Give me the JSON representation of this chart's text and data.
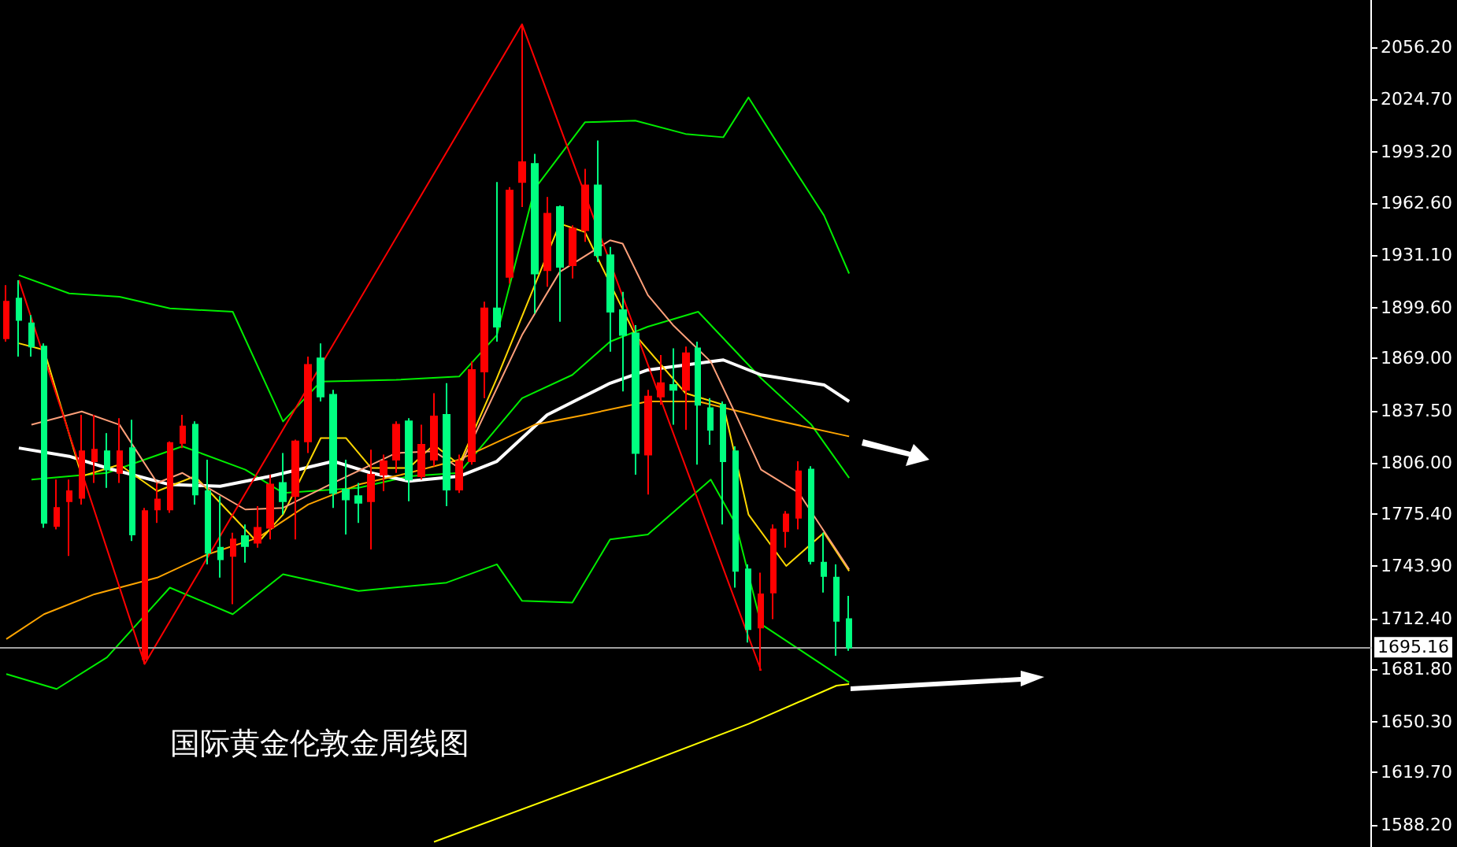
{
  "chart_data": {
    "type": "candlestick",
    "title": "国际黄金伦敦金周线图",
    "categories": [
      null,
      null,
      null,
      null,
      null,
      null,
      null,
      null,
      null,
      null,
      null,
      null,
      null,
      null,
      null,
      null,
      null,
      null,
      null,
      null,
      null,
      null,
      null,
      null,
      null,
      null,
      null,
      null,
      null,
      null,
      null,
      null,
      null,
      null,
      null,
      null,
      null,
      null,
      null,
      null,
      null,
      null,
      null,
      null,
      null,
      null,
      null,
      null,
      null,
      null,
      null,
      null,
      null,
      null,
      null,
      null,
      null,
      null,
      null,
      null,
      null,
      null,
      null,
      null,
      null,
      null,
      null,
      null,
      null,
      null,
      null,
      null,
      null,
      null,
      null,
      null,
      null,
      null,
      null,
      null,
      null,
      null,
      null,
      null,
      null,
      null,
      null,
      null,
      null,
      null,
      null,
      null,
      null,
      null,
      null,
      null,
      null,
      null,
      null,
      null,
      null,
      null,
      null,
      null,
      null,
      null,
      null,
      null,
      null
    ],
    "ohlc": [
      [
        1881,
        1913,
        1879,
        1903
      ],
      [
        1905,
        1916,
        1870,
        1892
      ],
      [
        1890,
        1895,
        1870,
        1876
      ],
      [
        1876,
        1878,
        1767,
        1770
      ],
      [
        1768,
        1796,
        1766,
        1779
      ],
      [
        1783,
        1796,
        1750,
        1789
      ],
      [
        1785,
        1835,
        1781,
        1813
      ],
      [
        1807,
        1835,
        1794,
        1814
      ],
      [
        1813,
        1824,
        1791,
        1802
      ],
      [
        1800,
        1833,
        1794,
        1813
      ],
      [
        1815,
        1832,
        1759,
        1763
      ],
      [
        1688,
        1779,
        1685,
        1777
      ],
      [
        1778,
        1794,
        1770,
        1784
      ],
      [
        1778,
        1819,
        1776,
        1818
      ],
      [
        1818,
        1835,
        1815,
        1828
      ],
      [
        1829,
        1831,
        1781,
        1787
      ],
      [
        1789,
        1808,
        1745,
        1752
      ],
      [
        1755,
        1786,
        1737,
        1748
      ],
      [
        1750,
        1764,
        1721,
        1760
      ],
      [
        1762,
        1769,
        1746,
        1756
      ],
      [
        1758,
        1780,
        1755,
        1767
      ],
      [
        1767,
        1799,
        1760,
        1793
      ],
      [
        1794,
        1812,
        1775,
        1783
      ],
      [
        1786,
        1820,
        1760,
        1819
      ],
      [
        1819,
        1870,
        1812,
        1865
      ],
      [
        1869,
        1878,
        1843,
        1846
      ],
      [
        1847,
        1850,
        1779,
        1788
      ],
      [
        1790,
        1808,
        1763,
        1784
      ],
      [
        1786,
        1794,
        1770,
        1782
      ],
      [
        1783,
        1814,
        1754,
        1799
      ],
      [
        1799,
        1811,
        1789,
        1807
      ],
      [
        1808,
        1831,
        1800,
        1829
      ],
      [
        1831,
        1833,
        1783,
        1796
      ],
      [
        1798,
        1829,
        1796,
        1817
      ],
      [
        1808,
        1848,
        1804,
        1834
      ],
      [
        1835,
        1854,
        1780,
        1790
      ],
      [
        1790,
        1811,
        1788,
        1807
      ],
      [
        1807,
        1867,
        1805,
        1862
      ],
      [
        1861,
        1903,
        1845,
        1899
      ],
      [
        1899,
        1975,
        1879,
        1888
      ],
      [
        1918,
        1972,
        1914,
        1970
      ],
      [
        1975,
        2070,
        1960,
        1987
      ],
      [
        1986,
        1992,
        1896,
        1920
      ],
      [
        1922,
        1966,
        1912,
        1956
      ],
      [
        1960,
        1961,
        1891,
        1924
      ],
      [
        1925,
        1949,
        1917,
        1947
      ],
      [
        1946,
        1983,
        1939,
        1973
      ],
      [
        1973,
        2000,
        1927,
        1931
      ],
      [
        1931,
        1936,
        1873,
        1897
      ],
      [
        1898,
        1909,
        1849,
        1883
      ],
      [
        1884,
        1889,
        1799,
        1812
      ],
      [
        1811,
        1850,
        1787,
        1846
      ],
      [
        1846,
        1871,
        1841,
        1854
      ],
      [
        1853,
        1875,
        1829,
        1850
      ],
      [
        1850,
        1876,
        1826,
        1872
      ],
      [
        1875,
        1879,
        1805,
        1841
      ],
      [
        1839,
        1845,
        1817,
        1826
      ],
      [
        1841,
        1843,
        1769,
        1807
      ],
      [
        1813,
        1816,
        1731,
        1741
      ],
      [
        1742,
        1745,
        1698,
        1706
      ],
      [
        1707,
        1740,
        1681,
        1727
      ],
      [
        1728,
        1769,
        1712,
        1766
      ],
      [
        1765,
        1777,
        1755,
        1775
      ],
      [
        1773,
        1807,
        1766,
        1801
      ],
      [
        1802,
        1804,
        1745,
        1747
      ],
      [
        1746,
        1764,
        1728,
        1738
      ],
      [
        1737,
        1745,
        1690,
        1711
      ],
      [
        1712,
        1726,
        1693,
        1695
      ],
      null,
      null,
      null,
      null,
      null,
      null,
      null,
      null,
      null,
      null,
      null,
      null,
      null,
      null,
      null,
      null,
      null,
      null,
      null,
      null,
      null,
      null,
      null,
      null,
      null,
      null,
      null,
      null,
      null,
      null,
      null,
      null,
      null,
      null,
      null,
      null,
      null,
      null,
      null,
      null,
      null
    ],
    "colors": [
      "#ff0000",
      "#00ff80",
      "#00ff80",
      "#00ff80",
      "#ff0000",
      "#ff0000",
      "#ff0000",
      "#ff0000",
      "#00ff80",
      "#ff0000",
      "#00ff80",
      "#ff0000",
      "#ff0000",
      "#ff0000",
      "#ff0000",
      "#00ff80",
      "#00ff80",
      "#00ff80",
      "#ff0000",
      "#00ff80",
      "#ff0000",
      "#ff0000",
      "#00ff80",
      "#ff0000",
      "#ff0000",
      "#00ff80",
      "#00ff80",
      "#00ff80",
      "#00ff80",
      "#ff0000",
      "#ff0000",
      "#ff0000",
      "#00ff80",
      "#ff0000",
      "#ff0000",
      "#00ff80",
      "#ff0000",
      "#ff0000",
      "#ff0000",
      "#00ff80",
      "#ff0000",
      "#ff0000",
      "#00ff80",
      "#ff0000",
      "#00ff80",
      "#ff0000",
      "#ff0000",
      "#00ff80",
      "#00ff80",
      "#00ff80",
      "#00ff80",
      "#ff0000",
      "#ff0000",
      "#00ff80",
      "#ff0000",
      "#00ff80",
      "#00ff80",
      "#00ff80",
      "#00ff80",
      "#00ff80",
      "#ff0000",
      "#ff0000",
      "#ff0000",
      "#ff0000",
      "#00ff80",
      "#00ff80",
      "#00ff80",
      "#00ff80",
      null,
      null,
      null,
      null,
      null,
      null,
      null,
      null,
      null,
      null,
      null,
      null,
      null,
      null,
      null,
      null,
      null,
      null,
      null,
      null,
      null,
      null,
      null,
      null,
      null,
      null,
      null,
      null,
      null,
      null,
      null,
      null,
      null,
      null,
      null,
      null,
      null,
      null,
      null,
      null,
      null
    ],
    "series": [
      {
        "type": "line",
        "color": "#00ee00",
        "values": [
          null,
          1919,
          null,
          null,
          null,
          1908,
          null,
          null,
          null,
          1906,
          null,
          null,
          null,
          1899,
          null,
          null,
          null,
          null,
          1897,
          null,
          null,
          null,
          1831,
          null,
          null,
          1855,
          null,
          null,
          null,
          null,
          null,
          1856,
          null,
          null,
          null,
          null,
          1858,
          null,
          null,
          1883,
          null,
          null,
          1971,
          null,
          null,
          null,
          2011,
          null,
          null,
          null,
          2012,
          null,
          null,
          null,
          2004,
          null,
          null,
          2002,
          null,
          2026,
          null,
          2002,
          null,
          null,
          null,
          1955,
          null,
          1920,
          null,
          null,
          null,
          null,
          null,
          null,
          null,
          null,
          null,
          null,
          null,
          null,
          null,
          null,
          null,
          null,
          null,
          null,
          null,
          null,
          null,
          null,
          null,
          null,
          null,
          null,
          null,
          null,
          null,
          null,
          null,
          null,
          null,
          null,
          null,
          null,
          null,
          null,
          null,
          null,
          null
        ]
      },
      {
        "type": "line",
        "color": "#00ee00",
        "values": [
          null,
          null,
          1796,
          null,
          null,
          null,
          null,
          null,
          1800,
          null,
          null,
          null,
          null,
          null,
          1816,
          null,
          null,
          null,
          null,
          1802,
          null,
          null,
          1788,
          null,
          null,
          null,
          null,
          null,
          1791,
          null,
          null,
          null,
          1798,
          null,
          null,
          null,
          1800,
          null,
          null,
          null,
          null,
          1845,
          null,
          null,
          null,
          1859,
          null,
          null,
          1879,
          null,
          null,
          1888,
          null,
          null,
          null,
          1897,
          null,
          null,
          null,
          null,
          1857,
          null,
          null,
          null,
          1829,
          null,
          null,
          1797,
          null,
          null,
          null,
          null,
          null,
          null,
          null,
          null,
          null,
          null,
          null,
          null,
          null,
          null,
          null,
          null,
          null,
          null,
          null,
          null,
          null,
          null,
          null,
          null,
          null,
          null,
          null,
          null,
          null,
          null,
          null,
          null,
          null,
          null,
          null,
          null,
          null,
          null,
          null,
          null,
          null
        ]
      },
      {
        "type": "line",
        "color": "#00ee00",
        "values": [
          1679,
          null,
          null,
          null,
          1670,
          null,
          null,
          null,
          1689,
          null,
          null,
          null,
          null,
          1731,
          null,
          null,
          null,
          null,
          1715,
          null,
          null,
          null,
          1739,
          null,
          null,
          null,
          null,
          null,
          1729,
          null,
          null,
          null,
          null,
          null,
          null,
          1734,
          null,
          null,
          null,
          1745,
          null,
          1723,
          null,
          null,
          null,
          1722,
          null,
          null,
          1760,
          null,
          null,
          1763,
          null,
          null,
          null,
          null,
          1796,
          null,
          1769,
          null,
          1709,
          null,
          null,
          1694,
          null,
          null,
          null,
          1674,
          null,
          null,
          null,
          null,
          null,
          null,
          null,
          null,
          null,
          null,
          null,
          null,
          null,
          null,
          null,
          null,
          null,
          null,
          null,
          null,
          null,
          null,
          null,
          null,
          null,
          null,
          null,
          null,
          null,
          null,
          null,
          null,
          null,
          null,
          null,
          null,
          null,
          null,
          null,
          null,
          null
        ]
      },
      {
        "type": "line",
        "color": "#ffffff",
        "values": [
          null,
          1815,
          null,
          null,
          null,
          1810,
          null,
          null,
          1803,
          null,
          null,
          null,
          null,
          1793,
          null,
          null,
          null,
          1792,
          null,
          null,
          null,
          1798,
          null,
          null,
          null,
          null,
          1807,
          null,
          null,
          1800,
          null,
          null,
          1795,
          null,
          null,
          null,
          1798,
          null,
          null,
          1807,
          null,
          null,
          null,
          1835,
          null,
          null,
          null,
          null,
          1854,
          null,
          null,
          1862,
          null,
          null,
          null,
          null,
          null,
          1868,
          null,
          null,
          1859,
          null,
          null,
          null,
          null,
          1853,
          null,
          1843,
          null,
          null,
          null,
          null,
          null,
          null,
          null,
          null,
          null,
          null,
          null,
          null,
          null,
          null,
          null,
          null,
          null,
          null,
          null,
          null,
          null,
          null,
          null,
          null,
          null,
          null,
          null,
          null,
          null,
          null,
          null,
          null,
          null,
          null,
          null,
          null,
          null,
          null,
          null,
          null,
          null
        ]
      },
      {
        "type": "line",
        "color": "#ffa500",
        "values": [
          1700,
          null,
          null,
          1715,
          null,
          null,
          null,
          1727,
          null,
          null,
          null,
          null,
          1737,
          null,
          null,
          null,
          1751,
          null,
          null,
          null,
          1761,
          null,
          null,
          null,
          1781,
          null,
          null,
          null,
          1793,
          null,
          null,
          null,
          1800,
          null,
          null,
          null,
          1808,
          null,
          null,
          null,
          null,
          null,
          1829,
          null,
          null,
          null,
          1835,
          null,
          null,
          null,
          null,
          1843,
          null,
          null,
          null,
          1843,
          null,
          null,
          null,
          null,
          null,
          1832,
          null,
          null,
          null,
          null,
          null,
          1822,
          null,
          null,
          null,
          null,
          null,
          null,
          null,
          null,
          null,
          null,
          null,
          null,
          null,
          null,
          null,
          null,
          null,
          null,
          null,
          null,
          null,
          null,
          null,
          null,
          null,
          null,
          null,
          null,
          null,
          null,
          null,
          null,
          null,
          null,
          null,
          null,
          null,
          null,
          null,
          null,
          null
        ]
      },
      {
        "type": "line",
        "color": "#ffd700",
        "values": [
          null,
          1878,
          null,
          1874,
          null,
          null,
          1798,
          null,
          null,
          1805,
          null,
          null,
          1789,
          null,
          null,
          1798,
          null,
          null,
          null,
          null,
          1758,
          null,
          1775,
          null,
          null,
          1821,
          null,
          1821,
          null,
          1803,
          null,
          null,
          1803,
          null,
          1817,
          null,
          1805,
          null,
          null,
          1857,
          null,
          null,
          null,
          null,
          1950,
          null,
          1945,
          null,
          null,
          null,
          1883,
          null,
          null,
          null,
          1848,
          null,
          null,
          1841,
          null,
          1775,
          null,
          null,
          1744,
          null,
          null,
          1764,
          null,
          1741,
          null,
          null,
          null,
          null,
          null,
          null,
          null,
          null,
          null,
          null,
          null,
          null,
          null,
          null,
          null,
          null,
          null,
          null,
          null,
          null,
          null,
          null,
          null,
          null,
          null,
          null,
          null,
          null,
          null,
          null,
          null,
          null,
          null,
          null,
          null,
          null,
          null,
          null,
          null,
          null,
          null
        ]
      },
      {
        "type": "line",
        "color": "#ffa07a",
        "values": [
          null,
          null,
          1829,
          null,
          null,
          null,
          1837,
          null,
          null,
          1829,
          null,
          null,
          1794,
          null,
          1800,
          null,
          null,
          null,
          null,
          1778,
          null,
          null,
          1779,
          null,
          null,
          null,
          1794,
          null,
          null,
          null,
          null,
          1812,
          null,
          null,
          1813,
          null,
          1803,
          null,
          null,
          null,
          null,
          1883,
          null,
          null,
          1921,
          null,
          null,
          null,
          1940,
          1938,
          null,
          1907,
          null,
          1889,
          null,
          null,
          1867,
          null,
          1835,
          null,
          1802,
          null,
          null,
          1788,
          null,
          null,
          null,
          1742,
          null,
          null,
          null,
          null,
          null,
          null,
          null,
          null,
          null,
          null,
          null,
          null,
          null,
          null,
          null,
          null,
          null,
          null,
          null,
          null,
          null,
          null,
          null,
          null,
          null,
          null,
          null,
          null,
          null,
          null,
          null,
          null,
          null,
          null,
          null,
          null,
          null,
          null,
          null,
          null,
          null
        ]
      },
      {
        "type": "line",
        "color": "#ffff00",
        "values": [
          null,
          null,
          null,
          null,
          null,
          null,
          null,
          null,
          null,
          null,
          null,
          null,
          null,
          null,
          null,
          null,
          null,
          null,
          null,
          null,
          null,
          null,
          null,
          null,
          null,
          null,
          null,
          null,
          null,
          null,
          null,
          null,
          null,
          null,
          1578,
          null,
          null,
          null,
          null,
          null,
          null,
          null,
          null,
          null,
          null,
          null,
          null,
          null,
          null,
          1620,
          null,
          null,
          null,
          null,
          null,
          null,
          null,
          null,
          null,
          1649,
          null,
          null,
          null,
          null,
          null,
          null,
          1672,
          1673,
          null,
          null,
          null,
          null,
          null,
          null,
          null,
          null,
          null,
          null,
          null,
          null,
          null,
          null,
          null,
          null,
          null,
          null,
          null,
          null,
          null,
          null,
          null,
          null,
          null,
          null,
          null,
          null,
          null,
          null,
          null,
          null,
          null,
          null,
          null,
          null,
          null,
          null,
          null,
          null,
          null
        ]
      },
      {
        "type": "line",
        "color": "#ff0000",
        "values": [
          null,
          1916,
          null,
          null,
          null,
          null,
          null,
          null,
          null,
          null,
          null,
          1685,
          null,
          null,
          null,
          null,
          null,
          null,
          null,
          null,
          null,
          null,
          null,
          null,
          null,
          null,
          null,
          null,
          null,
          null,
          null,
          null,
          null,
          null,
          null,
          null,
          null,
          null,
          null,
          null,
          null,
          2070,
          null,
          null,
          null,
          null,
          null,
          null,
          null,
          null,
          null,
          null,
          null,
          null,
          null,
          null,
          null,
          null,
          null,
          null,
          1681,
          null,
          null,
          null,
          null,
          null,
          null,
          null,
          null,
          null,
          null,
          null,
          null,
          null,
          null,
          null,
          null,
          null,
          null,
          null,
          null,
          null,
          null,
          null,
          null,
          null,
          null,
          null,
          null,
          null,
          null,
          null,
          null,
          null,
          null,
          null,
          null,
          null,
          null,
          null,
          null,
          null,
          null,
          null,
          null,
          null,
          null,
          null,
          null
        ]
      }
    ],
    "ylim": [
      1574.9,
      2084.6
    ],
    "yticks": [
      {
        "value": 1588.2,
        "label": "1588.20"
      },
      {
        "value": 1619.7,
        "label": "1619.70"
      },
      {
        "value": 1650.3,
        "label": "1650.30"
      },
      {
        "value": 1681.8,
        "label": "1681.80"
      },
      {
        "value": 1712.4,
        "label": "1712.40"
      },
      {
        "value": 1743.9,
        "label": "1743.90"
      },
      {
        "value": 1775.4,
        "label": "1775.40"
      },
      {
        "value": 1806,
        "label": "1806.00"
      },
      {
        "value": 1837.5,
        "label": "1837.50"
      },
      {
        "value": 1869,
        "label": "1869.00"
      },
      {
        "value": 1899.6,
        "label": "1899.60"
      },
      {
        "value": 1931.1,
        "label": "1931.10"
      },
      {
        "value": 1962.6,
        "label": "1962.60"
      },
      {
        "value": 1993.2,
        "label": "1993.20"
      },
      {
        "value": 2024.7,
        "label": "2024.70"
      },
      {
        "value": 2056.2,
        "label": "2056.20"
      }
    ],
    "ref_lines": [
      {
        "axis": "y",
        "value": 1695.16,
        "label": "1695.16",
        "color": "#a0a0a0"
      }
    ],
    "tick_labels": "y",
    "line_style": "solid"
  }
}
